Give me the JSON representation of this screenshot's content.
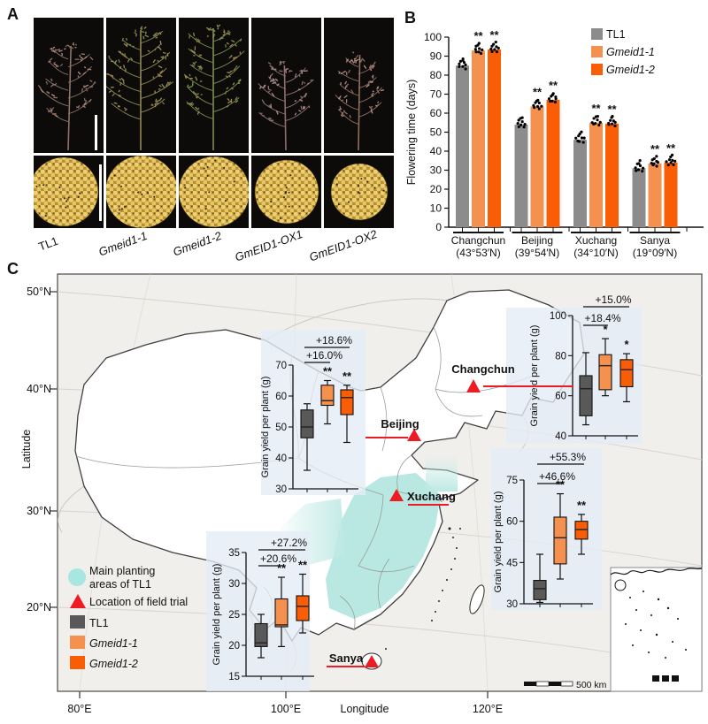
{
  "figure": {
    "panel_a_label": "A",
    "panel_b_label": "B",
    "panel_c_label": "C"
  },
  "panelA": {
    "genotypes": [
      {
        "label": "TL1",
        "italic": false
      },
      {
        "label": "Gmeid1-1",
        "italic": true
      },
      {
        "label": "Gmeid1-2",
        "italic": true
      },
      {
        "label": "GmEID1-OX1",
        "italic": true
      },
      {
        "label": "GmEID1-OX2",
        "italic": true
      }
    ]
  },
  "panelC": {
    "latitude_label": "Latitude",
    "longitude_label": "Longitude",
    "lat_ticks": [
      "50°N",
      "40°N",
      "30°N",
      "20°N"
    ],
    "lon_ticks": [
      "80°E",
      "100°E",
      "120°E"
    ],
    "cities": [
      "Changchun",
      "Beijing",
      "Xuchang",
      "Sanya"
    ],
    "scalebar_label": "500 km",
    "legend": {
      "planting_line1": "Main planting",
      "planting_line2": "areas of TL1",
      "planting_color": "#a7e6e1",
      "trial_label": "Location of field trial",
      "trial_color": "#ed1c24",
      "entries": [
        {
          "label": "TL1",
          "color": "#595959",
          "italic": false
        },
        {
          "label": "Gmeid1-1",
          "color": "#f4914e",
          "italic": true
        },
        {
          "label": "Gmeid1-2",
          "color": "#f95d05",
          "italic": true
        }
      ]
    }
  },
  "chart_data": [
    {
      "id": "flowering_time",
      "type": "bar",
      "ylabel": "Flowering time (days)",
      "ylim": [
        0,
        100
      ],
      "ytick_step": 10,
      "grid": false,
      "legend_position": "top-right",
      "categories": [
        {
          "city": "Changchun",
          "lat": "(43°53′N)"
        },
        {
          "city": "Beijing",
          "lat": "(39°54′N)"
        },
        {
          "city": "Xuchang",
          "lat": "(34°10′N)"
        },
        {
          "city": "Sanya",
          "lat": "(19°09′N)"
        }
      ],
      "series": [
        {
          "name": "TL1",
          "color": "#8c8c8c",
          "italic": false,
          "values": [
            85,
            54,
            46,
            31
          ],
          "sig": [
            "",
            "",
            "",
            ""
          ]
        },
        {
          "name": "Gmeid1-1",
          "color": "#f4914e",
          "italic": true,
          "values": [
            93,
            63.5,
            55,
            33.5
          ],
          "sig": [
            "**",
            "**",
            "**",
            "**"
          ]
        },
        {
          "name": "Gmeid1-2",
          "color": "#f95d05",
          "italic": true,
          "values": [
            93.5,
            67,
            54.5,
            34
          ],
          "sig": [
            "**",
            "**",
            "**",
            "**"
          ]
        }
      ]
    },
    {
      "id": "yield_changchun",
      "type": "boxplot",
      "city": "Changchun",
      "ylabel": "Grain yield per plant (g)",
      "ylim": [
        40,
        100
      ],
      "yticks": [
        40,
        60,
        80,
        100
      ],
      "comparisons": [
        {
          "target": "Gmeid1-1",
          "label": "+18.4%"
        },
        {
          "target": "Gmeid1-2",
          "label": "+15.0%"
        }
      ],
      "boxes": [
        {
          "name": "TL1",
          "color": "#595959",
          "lo": 45.5,
          "q1": 50,
          "med": 63.5,
          "q3": 70,
          "hi": 81.5,
          "sig": ""
        },
        {
          "name": "Gmeid1-1",
          "color": "#f4914e",
          "lo": 60,
          "q1": 63,
          "med": 75,
          "q3": 80.5,
          "hi": 88.5,
          "sig": "*"
        },
        {
          "name": "Gmeid1-2",
          "color": "#f95d05",
          "lo": 57,
          "q1": 64.5,
          "med": 73,
          "q3": 78,
          "hi": 81,
          "sig": "*"
        }
      ]
    },
    {
      "id": "yield_beijing",
      "type": "boxplot",
      "city": "Beijing",
      "ylabel": "Grain yield per plant (g)",
      "ylim": [
        30,
        70
      ],
      "yticks": [
        30,
        40,
        50,
        60,
        70
      ],
      "comparisons": [
        {
          "target": "Gmeid1-1",
          "label": "+16.0%"
        },
        {
          "target": "Gmeid1-2",
          "label": "+18.6%"
        }
      ],
      "boxes": [
        {
          "name": "TL1",
          "color": "#595959",
          "lo": 36,
          "q1": 46.5,
          "med": 50,
          "q3": 55.5,
          "hi": 57.5,
          "sig": ""
        },
        {
          "name": "Gmeid1-1",
          "color": "#f4914e",
          "lo": 51,
          "q1": 57,
          "med": 58.5,
          "q3": 63.5,
          "hi": 65,
          "sig": "**"
        },
        {
          "name": "Gmeid1-2",
          "color": "#f95d05",
          "lo": 45,
          "q1": 54,
          "med": 59.5,
          "q3": 62,
          "hi": 63.5,
          "sig": "**"
        }
      ]
    },
    {
      "id": "yield_xuchang",
      "type": "boxplot",
      "city": "Xuchang",
      "ylabel": "Grain yield per plant (g)",
      "ylim": [
        30,
        75
      ],
      "yticks": [
        30,
        45,
        60,
        75
      ],
      "comparisons": [
        {
          "target": "Gmeid1-1",
          "label": "+46.6%"
        },
        {
          "target": "Gmeid1-2",
          "label": "+55.3%"
        }
      ],
      "boxes": [
        {
          "name": "TL1",
          "color": "#595959",
          "lo": 30.5,
          "q1": 31.5,
          "med": 35.5,
          "q3": 38.5,
          "hi": 48,
          "sig": ""
        },
        {
          "name": "Gmeid1-1",
          "color": "#f4914e",
          "lo": 39,
          "q1": 44.5,
          "med": 54,
          "q3": 61.5,
          "hi": 70,
          "sig": "**"
        },
        {
          "name": "Gmeid1-2",
          "color": "#f95d05",
          "lo": 48,
          "q1": 53.5,
          "med": 57,
          "q3": 60,
          "hi": 62.5,
          "sig": "**"
        }
      ]
    },
    {
      "id": "yield_sanya",
      "type": "boxplot",
      "city": "Sanya",
      "ylabel": "Grain yield per plant (g)",
      "ylim": [
        15,
        35
      ],
      "yticks": [
        15,
        20,
        25,
        30,
        35
      ],
      "comparisons": [
        {
          "target": "Gmeid1-1",
          "label": "+20.6%"
        },
        {
          "target": "Gmeid1-2",
          "label": "+27.2%"
        }
      ],
      "boxes": [
        {
          "name": "TL1",
          "color": "#595959",
          "lo": 18,
          "q1": 19.8,
          "med": 20.4,
          "q3": 23.5,
          "hi": 25,
          "sig": ""
        },
        {
          "name": "Gmeid1-1",
          "color": "#f4914e",
          "lo": 19.8,
          "q1": 23,
          "med": 23.3,
          "q3": 27.5,
          "hi": 31,
          "sig": "**"
        },
        {
          "name": "Gmeid1-2",
          "color": "#f95d05",
          "lo": 22,
          "q1": 24,
          "med": 26.3,
          "q3": 28,
          "hi": 31.5,
          "sig": "**"
        }
      ]
    }
  ]
}
